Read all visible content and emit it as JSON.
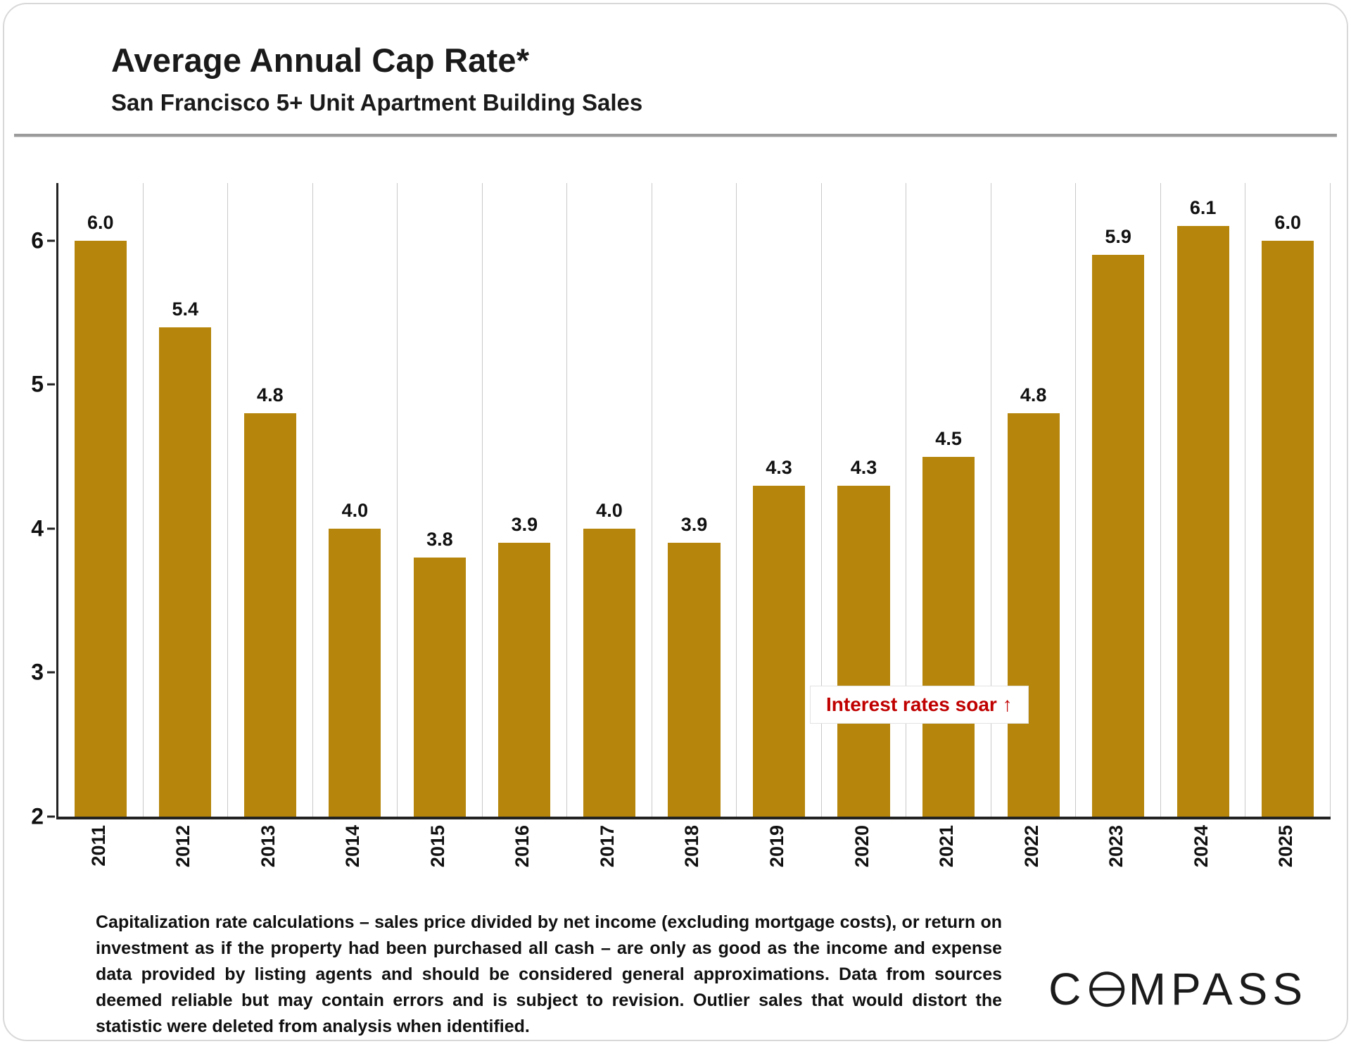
{
  "header": {
    "title": "Average Annual Cap Rate*",
    "subtitle": "San Francisco 5+ Unit Apartment Building Sales"
  },
  "chart_data": {
    "type": "bar",
    "title": "Average Annual Cap Rate*",
    "subtitle": "San Francisco 5+ Unit Apartment Building Sales",
    "categories": [
      "2011",
      "2012",
      "2013",
      "2014",
      "2015",
      "2016",
      "2017",
      "2018",
      "2019",
      "2020",
      "2021",
      "2022",
      "2023",
      "2024",
      "2025"
    ],
    "values": [
      6.0,
      5.4,
      4.8,
      4.0,
      3.8,
      3.9,
      4.0,
      3.9,
      4.3,
      4.3,
      4.5,
      4.8,
      5.9,
      6.1,
      6.0
    ],
    "value_label_decimals": 1,
    "ylim": [
      2,
      6.4
    ],
    "yticks": [
      2,
      3,
      4,
      5,
      6
    ],
    "bar_color": "#B5860B",
    "grid": "vertical-between-categories",
    "legend": "none",
    "annotation": {
      "text": "Interest rates soar ↑",
      "color": "#C00000",
      "x_between": [
        "2020",
        "2022"
      ],
      "y": 2.85
    }
  },
  "footer": {
    "disclaimer": "Capitalization rate calculations – sales price divided by net income (excluding mortgage costs), or return on investment as if the property had been purchased all cash – are only as good as the income and expense data provided by listing agents and should be considered general approximations. Data from sources deemed reliable but may contain errors and is subject to revision. Outlier sales that would distort the statistic were deleted from analysis when identified.",
    "logo_text": "COMPASS",
    "logo_parts": {
      "left": "C",
      "right": "MPASS"
    }
  }
}
